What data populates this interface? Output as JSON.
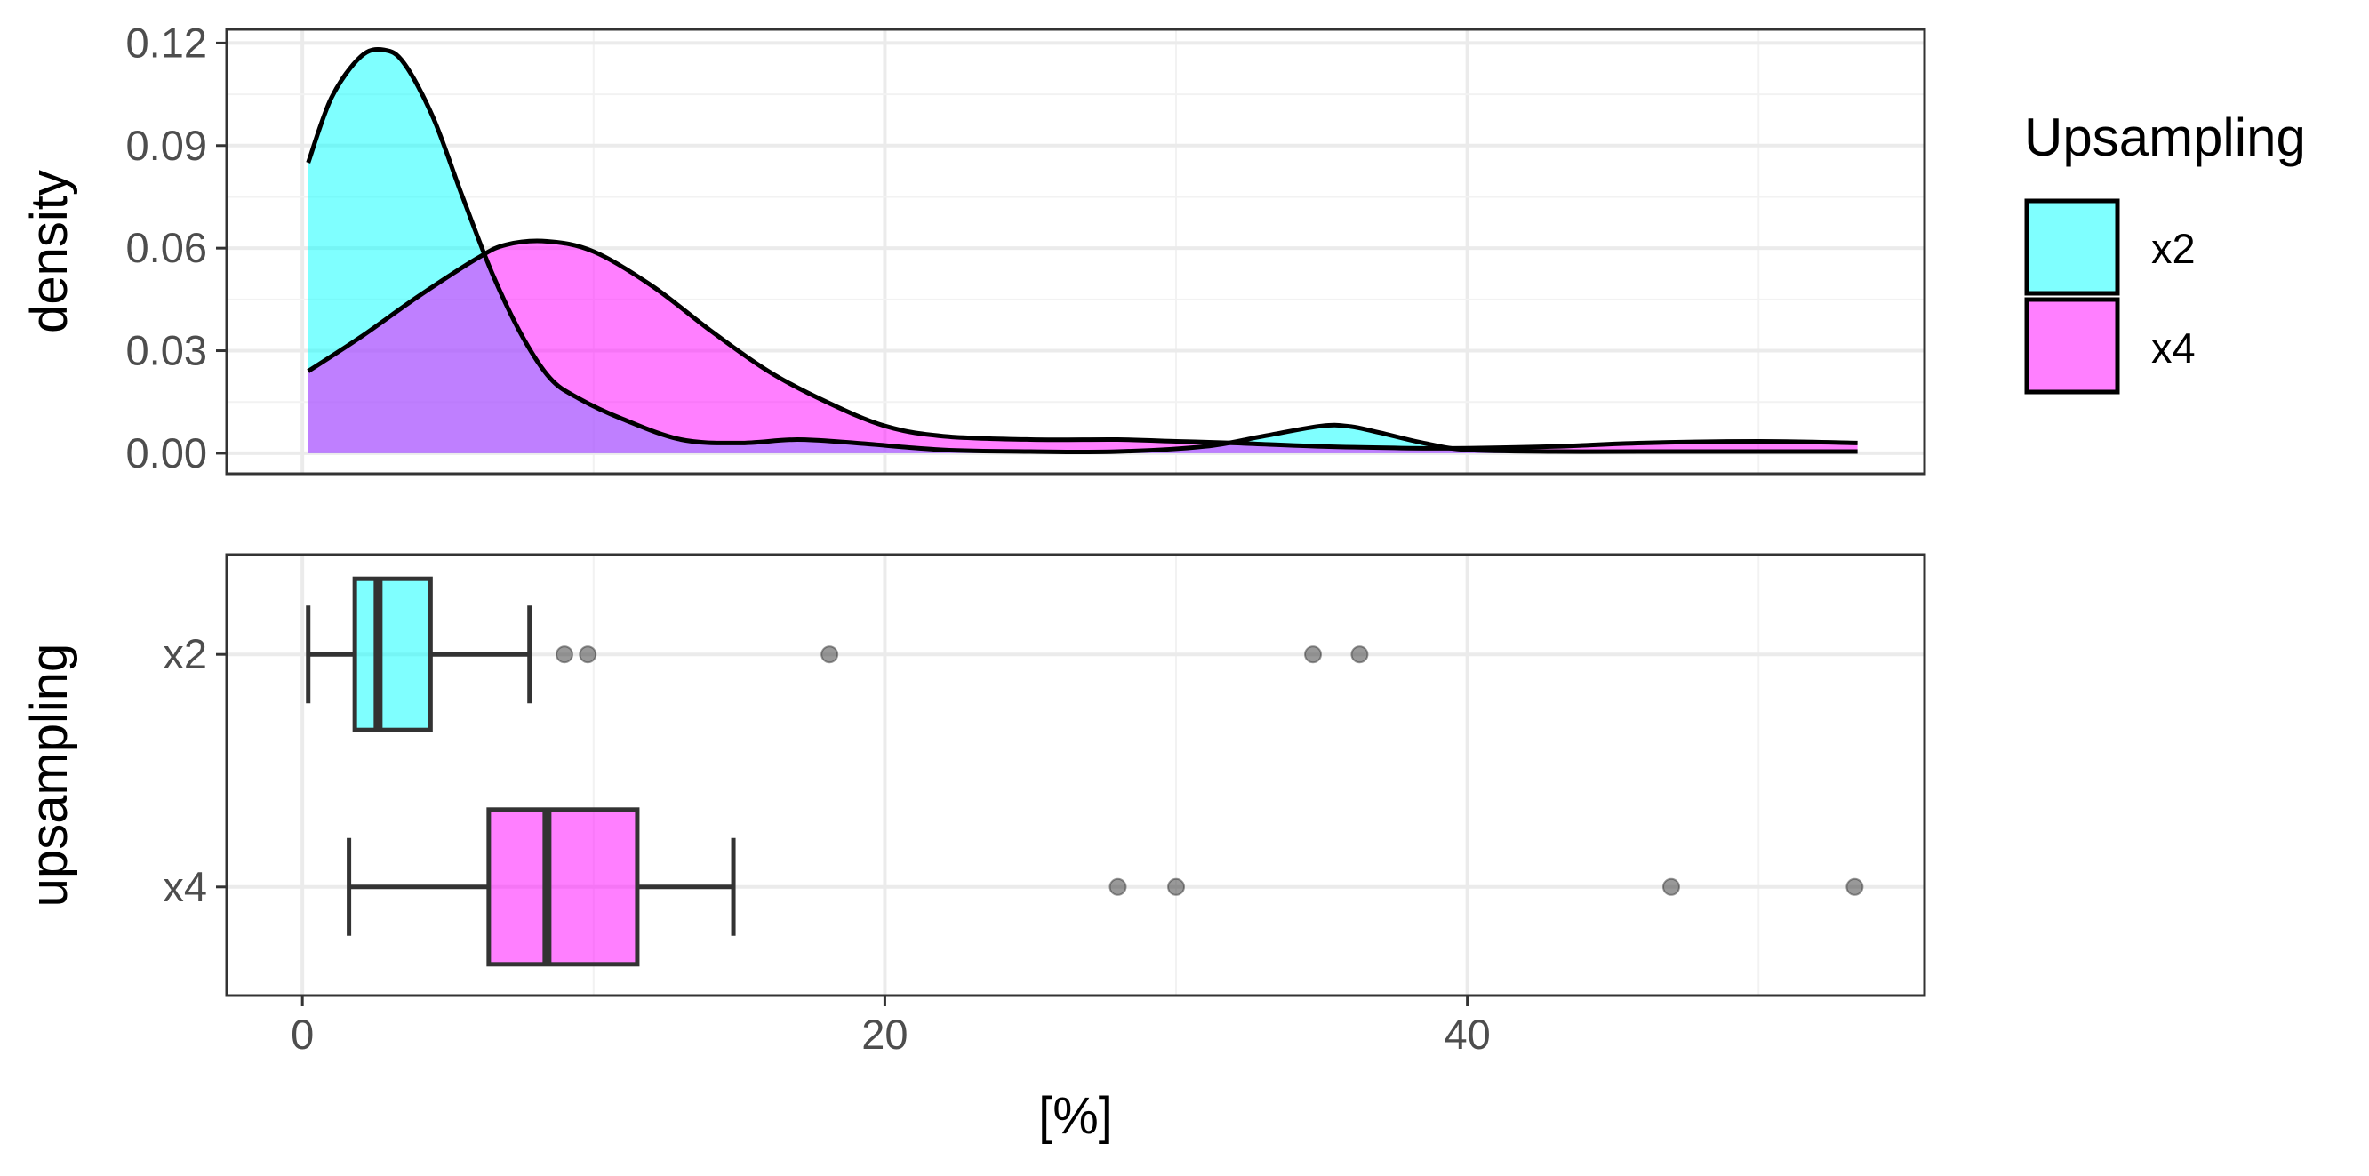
{
  "colors": {
    "x2": "#00FFFF",
    "x4": "#FF00FF"
  },
  "legend": {
    "title": "Upsampling",
    "items": [
      {
        "key": "x2",
        "label": "x2"
      },
      {
        "key": "x4",
        "label": "x4"
      }
    ]
  },
  "chart_data": [
    {
      "type": "area",
      "ylabel": "density",
      "xlim": [
        -2.6,
        55.7
      ],
      "ylim": [
        -0.006,
        0.124
      ],
      "y_ticks": [
        "0.00",
        "0.03",
        "0.06",
        "0.09",
        "0.12"
      ],
      "grid": true,
      "series": [
        {
          "name": "x2",
          "x": [
            0.2,
            1,
            2,
            2.8,
            3.5,
            4.5,
            5.5,
            6.5,
            7.5,
            8.5,
            9.5,
            11,
            13,
            15,
            17,
            19,
            22,
            25,
            28,
            31,
            33,
            35,
            36,
            37,
            38.5,
            40,
            43,
            46,
            50,
            53.4
          ],
          "y": [
            0.085,
            0.104,
            0.116,
            0.118,
            0.114,
            0.098,
            0.075,
            0.053,
            0.035,
            0.022,
            0.016,
            0.01,
            0.004,
            0.003,
            0.004,
            0.003,
            0.001,
            0.0005,
            0.0005,
            0.002,
            0.005,
            0.008,
            0.0078,
            0.006,
            0.003,
            0.001,
            0.0005,
            0.0005,
            0.0005,
            0.0005
          ]
        },
        {
          "name": "x4",
          "x": [
            0.2,
            2,
            4,
            6,
            7,
            8.4,
            10,
            12,
            14,
            16,
            18,
            20,
            22,
            25,
            28,
            30,
            32,
            35,
            38,
            40,
            43,
            46,
            50,
            53.4
          ],
          "y": [
            0.024,
            0.034,
            0.046,
            0.057,
            0.061,
            0.062,
            0.059,
            0.049,
            0.036,
            0.024,
            0.015,
            0.008,
            0.005,
            0.004,
            0.004,
            0.0035,
            0.003,
            0.002,
            0.0015,
            0.0015,
            0.002,
            0.003,
            0.0035,
            0.003
          ]
        }
      ]
    },
    {
      "type": "box",
      "ylabel": "upsampling",
      "xlabel": "[%]",
      "xlim": [
        -2.6,
        55.7
      ],
      "x_ticks": [
        0,
        20,
        40
      ],
      "categories": [
        "x2",
        "x4"
      ],
      "boxes": [
        {
          "name": "x2",
          "whisker_low": 0.2,
          "q1": 1.8,
          "median": 2.6,
          "q3": 4.4,
          "whisker_high": 7.8,
          "outliers": [
            9.0,
            9.8,
            18.1,
            34.7,
            36.3
          ]
        },
        {
          "name": "x4",
          "whisker_low": 1.6,
          "q1": 6.4,
          "median": 8.4,
          "q3": 11.5,
          "whisker_high": 14.8,
          "outliers": [
            28.0,
            30.0,
            47.0,
            53.3
          ]
        }
      ]
    }
  ]
}
